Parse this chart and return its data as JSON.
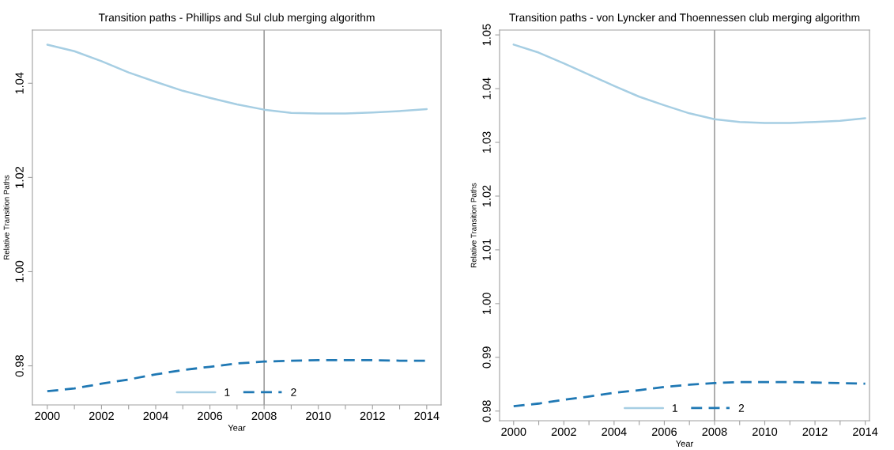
{
  "chart_data": [
    {
      "type": "line",
      "title": "Transition paths - Phillips and Sul club merging algorithm",
      "xlabel": "Year",
      "ylabel": "Relative Transition Paths",
      "x": [
        2000,
        2001,
        2002,
        2003,
        2004,
        2005,
        2006,
        2007,
        2008,
        2009,
        2010,
        2011,
        2012,
        2013,
        2014
      ],
      "series": [
        {
          "name": "1",
          "color": "#a6cee3",
          "line_style": "solid",
          "values": [
            1.0482,
            1.0468,
            1.0447,
            1.0423,
            1.0403,
            1.0384,
            1.0369,
            1.0355,
            1.0344,
            1.0337,
            1.0336,
            1.0336,
            1.0338,
            1.0341,
            1.0345
          ]
        },
        {
          "name": "2",
          "color": "#1f78b4",
          "line_style": "dashed",
          "values": [
            0.9746,
            0.9752,
            0.9762,
            0.9771,
            0.9782,
            0.9791,
            0.9798,
            0.9805,
            0.9809,
            0.9811,
            0.9812,
            0.9812,
            0.9812,
            0.9811,
            0.9811
          ]
        }
      ],
      "xlim": [
        1999.45,
        2014.53
      ],
      "ylim": [
        0.9717,
        1.0513
      ],
      "xticks": [
        2000,
        {
          "value": 2001,
          "label": null
        },
        2002,
        {
          "value": 2003,
          "label": null
        },
        2004,
        {
          "value": 2005,
          "label": null
        },
        2006,
        {
          "value": 2007,
          "label": null
        },
        2008,
        {
          "value": 2009,
          "label": null
        },
        2010,
        {
          "value": 2011,
          "label": null
        },
        2012,
        {
          "value": 2013,
          "label": null
        },
        2014
      ],
      "yticks": [
        {
          "value": 0.98,
          "label": "0.98"
        },
        {
          "value": 1.0,
          "label": "1.00"
        },
        {
          "value": 1.02,
          "label": "1.02"
        },
        {
          "value": 1.04,
          "label": "1.04"
        }
      ],
      "ref_lines": [
        {
          "axis": "x",
          "value": 2008,
          "color": "#8c8c8c"
        }
      ],
      "grid": false,
      "legend": "bottom"
    },
    {
      "type": "line",
      "title": "Transition paths - von Lyncker and Thoennessen club merging algorithm",
      "xlabel": "Year",
      "ylabel": "Relative Transition Paths",
      "x": [
        2000,
        2001,
        2002,
        2003,
        2004,
        2005,
        2006,
        2007,
        2008,
        2009,
        2010,
        2011,
        2012,
        2013,
        2014
      ],
      "series": [
        {
          "name": "1",
          "color": "#a6cee3",
          "line_style": "solid",
          "values": [
            1.0482,
            1.0467,
            1.0447,
            1.0426,
            1.0405,
            1.0385,
            1.0369,
            1.0354,
            1.0343,
            1.0338,
            1.0336,
            1.0336,
            1.0338,
            1.034,
            1.0345
          ]
        },
        {
          "name": "2",
          "color": "#1f78b4",
          "line_style": "dashed",
          "values": [
            0.9809,
            0.9814,
            0.9821,
            0.9827,
            0.9834,
            0.9839,
            0.9845,
            0.9849,
            0.9852,
            0.9854,
            0.9854,
            0.9854,
            0.9853,
            0.9852,
            0.9851
          ]
        }
      ],
      "xlim": [
        1999.44,
        2014.17
      ],
      "ylim": [
        0.9782,
        1.0509
      ],
      "xticks": [
        2000,
        {
          "value": 2001,
          "label": null
        },
        2002,
        {
          "value": 2003,
          "label": null
        },
        2004,
        {
          "value": 2005,
          "label": null
        },
        2006,
        {
          "value": 2007,
          "label": null
        },
        2008,
        {
          "value": 2009,
          "label": null
        },
        2010,
        {
          "value": 2011,
          "label": null
        },
        2012,
        {
          "value": 2013,
          "label": null
        },
        2014
      ],
      "yticks": [
        {
          "value": 0.98,
          "label": "0.98"
        },
        {
          "value": 0.99,
          "label": "0.99"
        },
        {
          "value": 1.0,
          "label": "1.00"
        },
        {
          "value": 1.01,
          "label": "1.01"
        },
        {
          "value": 1.02,
          "label": "1.02"
        },
        {
          "value": 1.03,
          "label": "1.03"
        },
        {
          "value": 1.04,
          "label": "1.04"
        },
        {
          "value": 1.05,
          "label": "1.05"
        }
      ],
      "ref_lines": [
        {
          "axis": "x",
          "value": 2008,
          "color": "#8c8c8c"
        }
      ],
      "grid": false,
      "legend": "bottom"
    }
  ]
}
